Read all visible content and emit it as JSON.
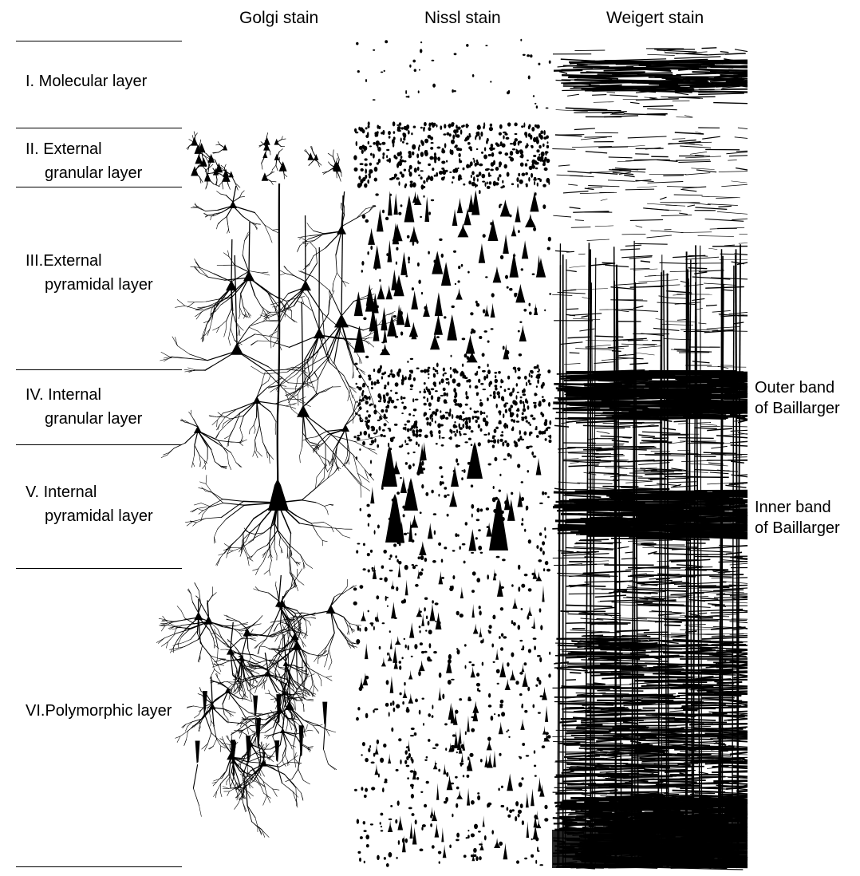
{
  "stains": {
    "golgi": "Golgi stain",
    "nissl": "Nissl stain",
    "weigert": "Weigert stain"
  },
  "layers": [
    {
      "line1": "I.  Molecular layer",
      "line2": ""
    },
    {
      "line1": "II.  External",
      "line2": "granular layer"
    },
    {
      "line1": "III.External",
      "line2": "pyramidal layer"
    },
    {
      "line1": "IV. Internal",
      "line2": "granular layer"
    },
    {
      "line1": "V.  Internal",
      "line2": "pyramidal layer"
    },
    {
      "line1": "VI.Polymorphic layer",
      "line2": ""
    }
  ],
  "bands": {
    "outer": {
      "line1": "Outer band",
      "line2": "of Baillarger"
    },
    "inner": {
      "line1": "Inner band",
      "line2": "of Baillarger"
    }
  },
  "colors": {
    "ink": "#000000",
    "paper": "#ffffff"
  }
}
